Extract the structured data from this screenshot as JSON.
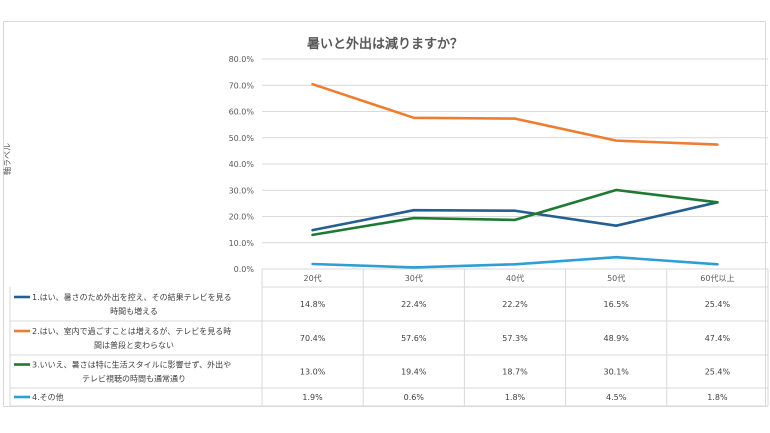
{
  "chart_data": {
    "type": "line",
    "title": "暑いと外出は減りますか？",
    "ylabel": "軸ラベル",
    "ylim": [
      0,
      80
    ],
    "yticks": [
      "0.0%",
      "10.0%",
      "20.0%",
      "30.0%",
      "40.0%",
      "50.0%",
      "60.0%",
      "70.0%",
      "80.0%"
    ],
    "categories": [
      "20代",
      "30代",
      "40代",
      "50代",
      "60代以上"
    ],
    "series": [
      {
        "name": "1.はい、暑さのため外出を控え、その結果テレビを見る時間も増える",
        "name_lines": [
          "1.はい、暑さのため外出を控え、その結果テレビを見る",
          "時間も増える"
        ],
        "color": "#255e91",
        "values": [
          14.8,
          22.4,
          22.2,
          16.5,
          25.4
        ],
        "labels": [
          "14.8%",
          "22.4%",
          "22.2%",
          "16.5%",
          "25.4%"
        ]
      },
      {
        "name": "2.はい、室内で過ごすことは増えるが、テレビを見る時間は普段と変わらない",
        "name_lines": [
          "2.はい、室内で過ごすことは増えるが、テレビを見る時",
          "間は普段と変わらない"
        ],
        "color": "#ed7d31",
        "values": [
          70.4,
          57.6,
          57.3,
          48.9,
          47.4
        ],
        "labels": [
          "70.4%",
          "57.6%",
          "57.3%",
          "48.9%",
          "47.4%"
        ]
      },
      {
        "name": "3.いいえ、暑さは特に生活スタイルに影響せず、外出やテレビ視聴の時間も通常通り",
        "name_lines": [
          "3.いいえ、暑さは特に生活スタイルに影響せず、外出や",
          "テレビ視聴の時間も通常通り"
        ],
        "color": "#1e7a33",
        "values": [
          13.0,
          19.4,
          18.7,
          30.1,
          25.4
        ],
        "labels": [
          "13.0%",
          "19.4%",
          "18.7%",
          "30.1%",
          "25.4%"
        ]
      },
      {
        "name": "4.その他",
        "name_lines": [
          "4.その他"
        ],
        "color": "#2e9fd6",
        "values": [
          1.9,
          0.6,
          1.8,
          4.5,
          1.8
        ],
        "labels": [
          "1.9%",
          "0.6%",
          "1.8%",
          "4.5%",
          "1.8%"
        ]
      }
    ],
    "grid": true,
    "legend": "data-table"
  }
}
